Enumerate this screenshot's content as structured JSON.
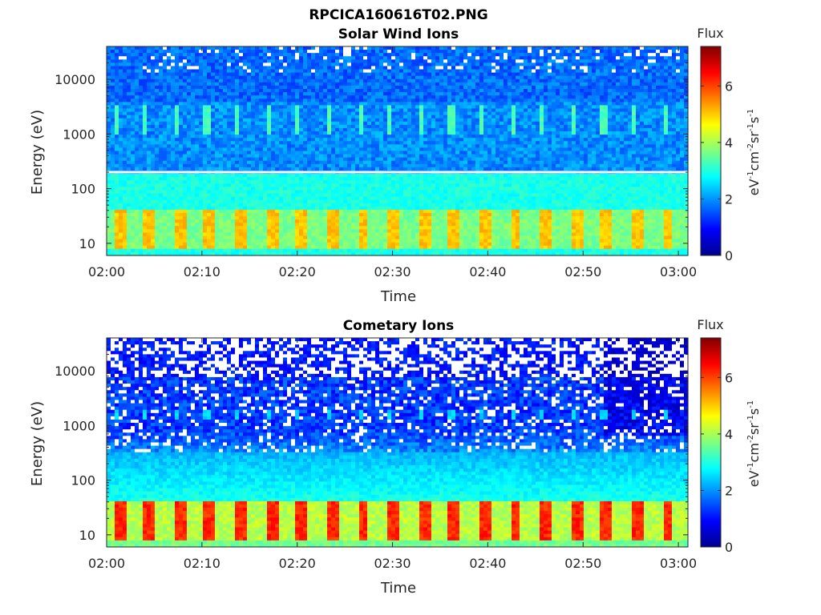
{
  "figure": {
    "title": "RPCICA160616T02.PNG"
  },
  "chart_data": [
    {
      "type": "heatmap",
      "title": "Solar Wind Ions",
      "xlabel": "Time",
      "ylabel": "Energy (eV)",
      "y_scale": "log",
      "ylim": [
        6,
        40000
      ],
      "xlim": [
        "02:00",
        "03:01"
      ],
      "x_ticks": [
        "02:00",
        "02:10",
        "02:20",
        "02:30",
        "02:40",
        "02:50",
        "03:00"
      ],
      "y_ticks": [
        "10",
        "100",
        "1000",
        "10000"
      ],
      "colorbar": {
        "label": "Flux",
        "unit": "eV-1cm-2sr-1s-1",
        "min": 0,
        "max": 7.4,
        "ticks": [
          "0",
          "2",
          "4",
          "6"
        ],
        "colormap": "jet"
      },
      "features": {
        "background_flux": 1.3,
        "low_energy_band": {
          "energy_range": [
            8,
            40
          ],
          "flux": 4.8
        },
        "mid_band": {
          "energy_range": [
            1000,
            3500
          ],
          "flux": 3.1
        },
        "line": {
          "energy": 200,
          "color": "#ffffff"
        }
      }
    },
    {
      "type": "heatmap",
      "title": "Cometary Ions",
      "xlabel": "Time",
      "ylabel": "Energy (eV)",
      "y_scale": "log",
      "ylim": [
        6,
        40000
      ],
      "xlim": [
        "02:00",
        "03:01"
      ],
      "x_ticks": [
        "02:00",
        "02:10",
        "02:20",
        "02:30",
        "02:40",
        "02:50",
        "03:00"
      ],
      "y_ticks": [
        "10",
        "100",
        "1000",
        "10000"
      ],
      "colorbar": {
        "label": "Flux",
        "unit": "eV-1cm-2sr-1s-1",
        "min": 0,
        "max": 7.4,
        "ticks": [
          "0",
          "2",
          "4",
          "6"
        ],
        "colormap": "jet"
      },
      "features": {
        "background_flux": 0.9,
        "low_energy_band": {
          "energy_range": [
            8,
            40
          ],
          "flux": 5.9
        },
        "mid_band": {
          "energy_range": [
            1200,
            2000
          ],
          "flux": 2.3
        }
      }
    }
  ]
}
